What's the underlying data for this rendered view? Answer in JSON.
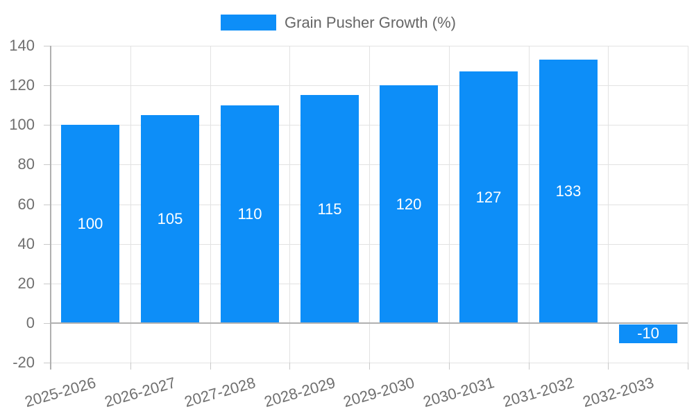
{
  "chart_data": {
    "type": "bar",
    "title": "Grain Pusher Growth (%)",
    "categories": [
      "2025-2026",
      "2026-2027",
      "2027-2028",
      "2028-2029",
      "2029-2030",
      "2030-2031",
      "2031-2032",
      "2032-2033"
    ],
    "values": [
      100,
      105,
      110,
      115,
      120,
      127,
      133,
      -10
    ],
    "bar_labels": [
      "100",
      "105",
      "110",
      "115",
      "120",
      "127",
      "133",
      "-10"
    ],
    "xlabel": "",
    "ylabel": "",
    "ylim": [
      -20,
      140
    ],
    "yticks": [
      -20,
      0,
      20,
      40,
      60,
      80,
      100,
      120,
      140
    ],
    "grid": true,
    "bar_color": "#0d8ef8",
    "bar_label_color": "#ffffff",
    "axis_text_color": "#6f6f6f",
    "legend": {
      "position": "top-center",
      "label": "Grain Pusher Growth (%)",
      "swatch_color": "#0d8ef8"
    }
  }
}
